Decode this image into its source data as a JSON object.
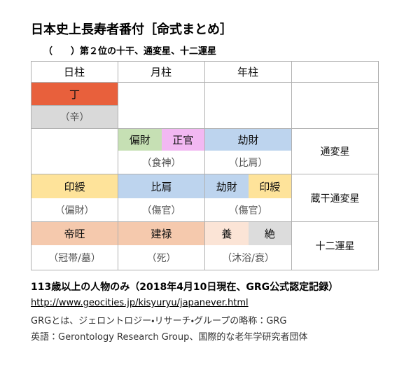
{
  "header": {
    "title": "日本史上長寿者番付［命式まとめ］",
    "subtitle": "（　　）第２位の十干、通変星、十二運星"
  },
  "table": {
    "columns": [
      "日柱",
      "月柱",
      "年柱"
    ],
    "tenkan": {
      "day": "丁",
      "day_sub": "（辛）"
    },
    "tsuhen": {
      "month": [
        "偏財",
        "正官"
      ],
      "month_sub": "（食神）",
      "year": [
        "劫財"
      ],
      "year_sub": "（比肩）",
      "label": "通変星"
    },
    "zoukan": {
      "day": [
        "印綬"
      ],
      "day_sub": "（偏財）",
      "month": [
        "比肩"
      ],
      "month_sub": "（傷官）",
      "year": [
        "劫財",
        "印綬"
      ],
      "year_sub": "（傷官）",
      "label": "蔵干通変星"
    },
    "unsei": {
      "day": [
        "帝旺"
      ],
      "day_sub": "（冠帯/墓）",
      "month": [
        "建禄"
      ],
      "month_sub": "（死）",
      "year": [
        "養",
        "絶"
      ],
      "year_sub": "（沐浴/衰）",
      "label": "十二運星"
    }
  },
  "footer": {
    "note": "113歳以上の人物のみ（2018年4月10日現在、GRG公式認定記録）",
    "link": "http://www.geocities.jp/kisyuryu/japanever.html",
    "line1": "GRGとは、ジェロントロジー・リサーチ・グループの略称：GRG",
    "line2": "英語：Gerontology Research Group、国際的な老年学研究者団体"
  }
}
